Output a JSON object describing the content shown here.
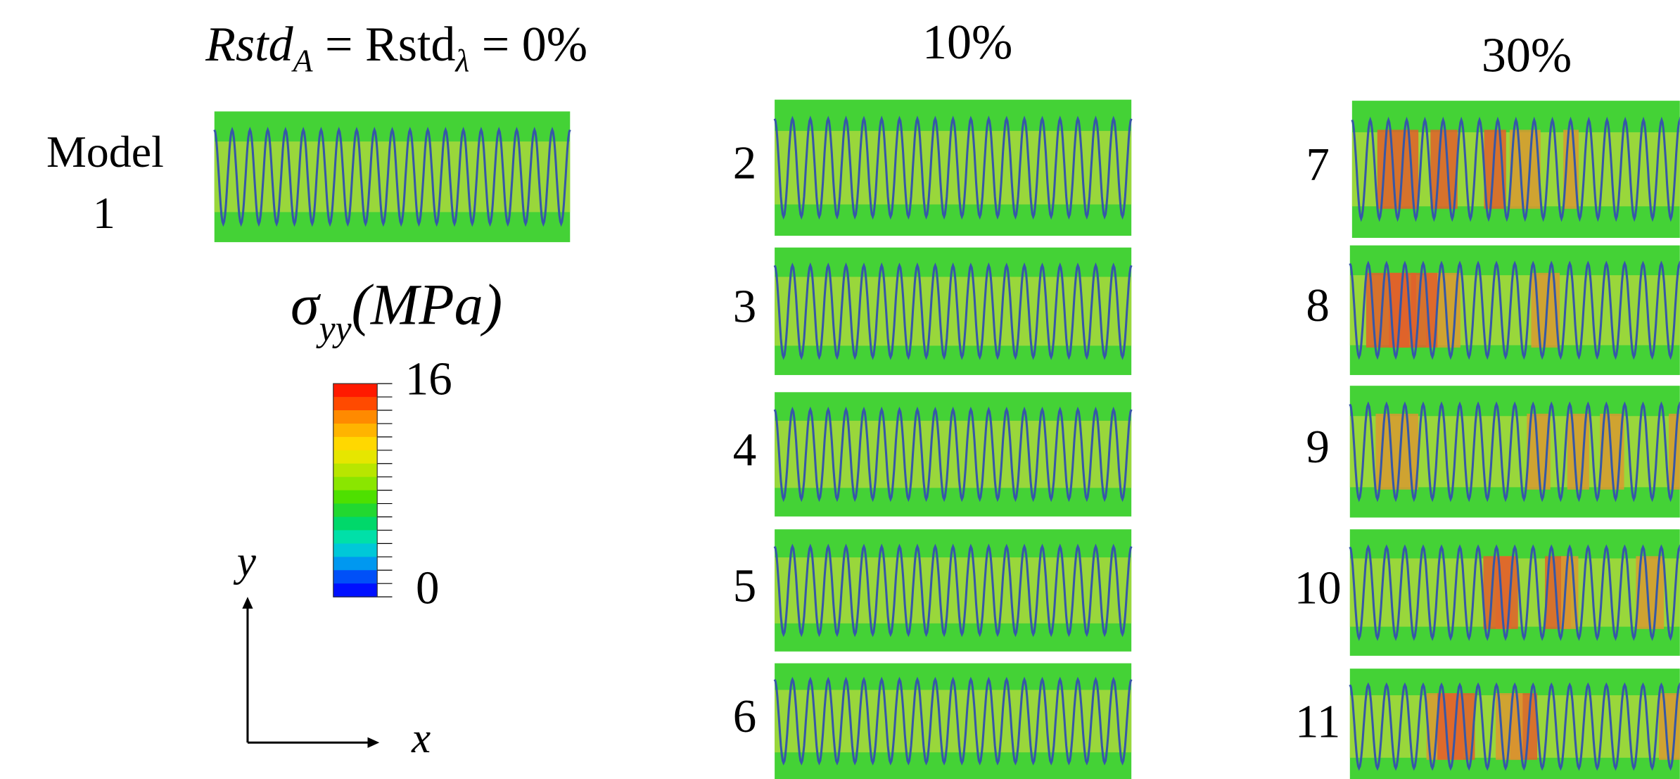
{
  "heading": {
    "parts": [
      "Rstd",
      "A",
      " = Rstd",
      "λ",
      " = 0%"
    ]
  },
  "columns": [
    {
      "panels": [
        {
          "label": [
            "Model",
            "1"
          ]
        }
      ]
    },
    {
      "title": "10%",
      "panels": [
        {
          "label": "2"
        },
        {
          "label": "3"
        },
        {
          "label": "4"
        },
        {
          "label": "5"
        },
        {
          "label": "6"
        }
      ]
    },
    {
      "title": "30%",
      "panels": [
        {
          "label": "7"
        },
        {
          "label": "8"
        },
        {
          "label": "9"
        },
        {
          "label": "10"
        },
        {
          "label": "11"
        }
      ]
    }
  ],
  "colorbar": {
    "title": {
      "parts": [
        "σ",
        "yy",
        "(MPa)"
      ]
    },
    "max": "16",
    "min": "0"
  },
  "axes": {
    "x": "x",
    "y": "y"
  }
}
